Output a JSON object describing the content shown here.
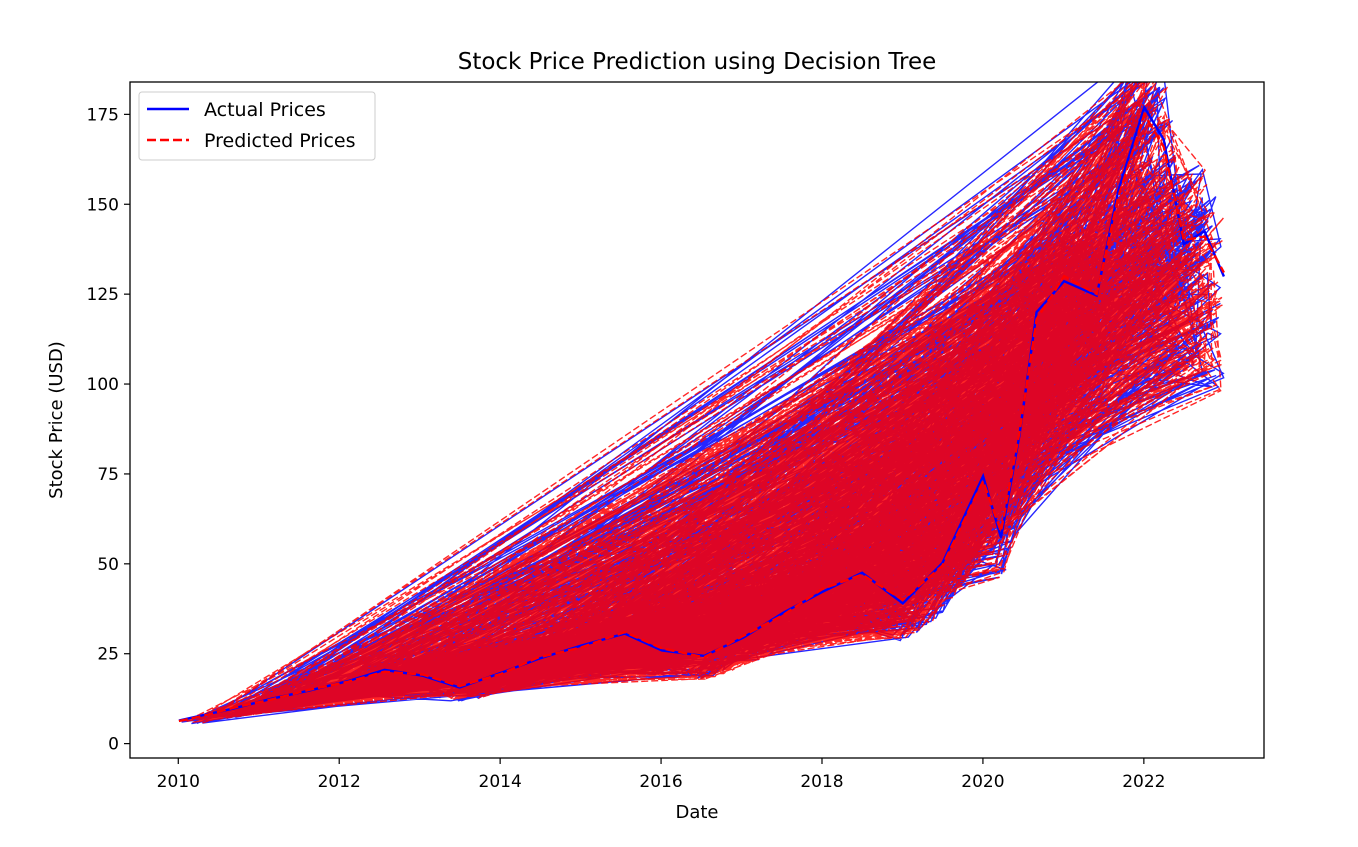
{
  "chart_data": {
    "type": "line",
    "title": "Stock Price Prediction using Decision Tree",
    "xlabel": "Date",
    "ylabel": "Stock Price (USD)",
    "xlim": [
      "2009-05-27",
      "2023-06-30"
    ],
    "ylim": [
      -4,
      184
    ],
    "x_ticks": [
      "2010",
      "2012",
      "2014",
      "2016",
      "2018",
      "2020",
      "2022"
    ],
    "y_ticks": [
      0,
      25,
      50,
      75,
      100,
      125,
      150,
      175
    ],
    "grid": false,
    "legend_position": "top-left",
    "colors": {
      "actual": "#0000ff",
      "predicted": "#ff0000",
      "frame": "#000000",
      "background": "#ffffff"
    },
    "series": [
      {
        "name": "Actual Prices",
        "line_style": "solid",
        "dates": [
          "2010-01-04",
          "2010-04-15",
          "2010-09-10",
          "2011-03-01",
          "2011-08-20",
          "2012-02-10",
          "2012-07-25",
          "2013-01-15",
          "2013-07-01",
          "2014-01-06",
          "2014-06-20",
          "2015-01-05",
          "2015-07-20",
          "2016-01-05",
          "2016-07-15",
          "2017-01-10",
          "2017-07-10",
          "2018-01-02",
          "2018-07-02",
          "2019-01-03",
          "2019-07-01",
          "2020-01-02",
          "2020-03-23",
          "2020-06-15",
          "2020-09-01",
          "2021-01-04",
          "2021-06-01",
          "2021-09-07",
          "2022-01-03",
          "2022-04-01",
          "2022-07-01",
          "2022-10-03",
          "2022-12-30"
        ],
        "values": [
          6.4,
          7.8,
          9.8,
          12.5,
          14.8,
          17.4,
          20.5,
          18.9,
          15.6,
          19.7,
          23.5,
          27.3,
          30.6,
          25.9,
          24.4,
          29.5,
          36.4,
          42.2,
          47.5,
          39.0,
          50.2,
          74.4,
          57.3,
          85.7,
          120.0,
          128.6,
          124.6,
          153.8,
          177.0,
          168.0,
          138.9,
          142.5,
          129.9
        ]
      },
      {
        "name": "Predicted Prices",
        "line_style": "dashed",
        "dates": [
          "2010-01-04",
          "2010-04-15",
          "2010-09-10",
          "2011-03-01",
          "2011-08-20",
          "2012-02-10",
          "2012-07-25",
          "2013-01-15",
          "2013-07-01",
          "2014-01-06",
          "2014-06-20",
          "2015-01-05",
          "2015-07-20",
          "2016-01-05",
          "2016-07-15",
          "2017-01-10",
          "2017-07-10",
          "2018-01-02",
          "2018-07-02",
          "2019-01-03",
          "2019-07-01",
          "2020-01-02",
          "2020-03-23",
          "2020-06-15",
          "2020-09-01",
          "2021-01-04",
          "2021-06-01",
          "2021-09-07",
          "2022-01-03",
          "2022-04-01",
          "2022-07-01",
          "2022-10-03",
          "2022-12-30"
        ],
        "values": [
          6.3,
          7.6,
          10.0,
          12.3,
          15.0,
          17.2,
          20.0,
          19.2,
          16.0,
          19.4,
          23.9,
          26.8,
          31.0,
          26.5,
          24.0,
          30.0,
          35.8,
          43.0,
          47.0,
          40.0,
          49.5,
          73.0,
          59.0,
          86.5,
          118.0,
          130.0,
          125.0,
          152.0,
          175.0,
          166.0,
          140.0,
          141.0,
          131.0
        ]
      }
    ]
  }
}
